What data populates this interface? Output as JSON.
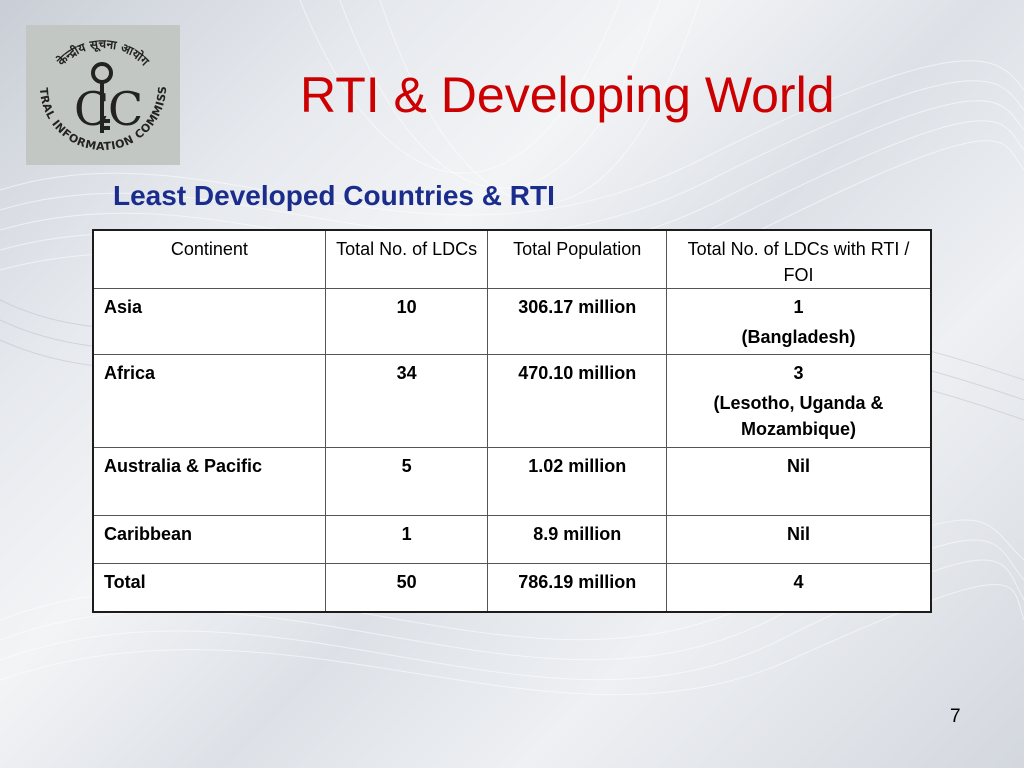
{
  "slide": {
    "title": "RTI & Developing World",
    "subtitle": "Least Developed Countries & RTI",
    "page_number": "7"
  },
  "logo": {
    "top_text": "केन्द्रीय सूचना आयोग",
    "bottom_text": "CENTRAL INFORMATION COMMISSION",
    "initials_left": "C",
    "initials_right": "C"
  },
  "table": {
    "headers": [
      "Continent",
      "Total No. of LDCs",
      "Total Population",
      "Total No. of LDCs with RTI / FOI"
    ],
    "rows": [
      {
        "continent": "Asia",
        "ldcs": "10",
        "population": "306.17 million",
        "rti": "1",
        "rti_note": "(Bangladesh)"
      },
      {
        "continent": "Africa",
        "ldcs": "34",
        "population": "470.10 million",
        "rti": "3",
        "rti_note": "(Lesotho, Uganda & Mozambique)"
      },
      {
        "continent": "Australia & Pacific",
        "ldcs": "5",
        "population": "1.02 million",
        "rti": "Nil",
        "rti_note": ""
      },
      {
        "continent": "Caribbean",
        "ldcs": "1",
        "population": "8.9 million",
        "rti": "Nil",
        "rti_note": ""
      },
      {
        "continent": "Total",
        "ldcs": "50",
        "population": "786.19 million",
        "rti": "4",
        "rti_note": ""
      }
    ]
  },
  "colors": {
    "title": "#cc0000",
    "subtitle": "#1a2c8c",
    "table_border": "#1c1c1c",
    "logo_background": "#c3c7c4"
  }
}
